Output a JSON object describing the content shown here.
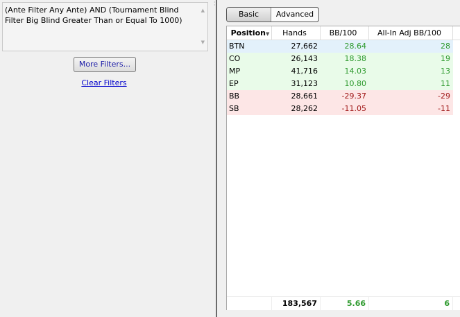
{
  "filters": {
    "text": "(Ante Filter Any Ante) AND (Tournament Blind Filter Big Blind Greater Than or Equal To 1000)",
    "more_label": "More Filters...",
    "clear_label": "Clear Filters"
  },
  "tabs": [
    {
      "label": "Basic",
      "active": true
    },
    {
      "label": "Advanced",
      "active": false
    }
  ],
  "table": {
    "columns": [
      "Position",
      "Hands",
      "BB/100",
      "All-In Adj BB/100"
    ],
    "sort_column": "Position",
    "rows": [
      {
        "position": "BTN",
        "hands": "27,662",
        "bb100": "28.64",
        "adj": "28",
        "tone": "blue",
        "sign": "pos"
      },
      {
        "position": "CO",
        "hands": "26,143",
        "bb100": "18.38",
        "adj": "19",
        "tone": "green",
        "sign": "pos"
      },
      {
        "position": "MP",
        "hands": "41,716",
        "bb100": "14.03",
        "adj": "13",
        "tone": "green",
        "sign": "pos"
      },
      {
        "position": "EP",
        "hands": "31,123",
        "bb100": "10.80",
        "adj": "11",
        "tone": "green",
        "sign": "pos"
      },
      {
        "position": "BB",
        "hands": "28,661",
        "bb100": "-29.37",
        "adj": "-29",
        "tone": "red",
        "sign": "neg"
      },
      {
        "position": "SB",
        "hands": "28,262",
        "bb100": "-11.05",
        "adj": "-11",
        "tone": "red",
        "sign": "neg"
      }
    ],
    "totals": {
      "position": "",
      "hands": "183,567",
      "bb100": "5.66",
      "adj": "6"
    }
  },
  "colors": {
    "positive": "#2e9a2e",
    "negative": "#a01818",
    "selected_row": "#e3f1fb",
    "win_row": "#e9fbe9",
    "loss_row": "#fde6e6"
  }
}
